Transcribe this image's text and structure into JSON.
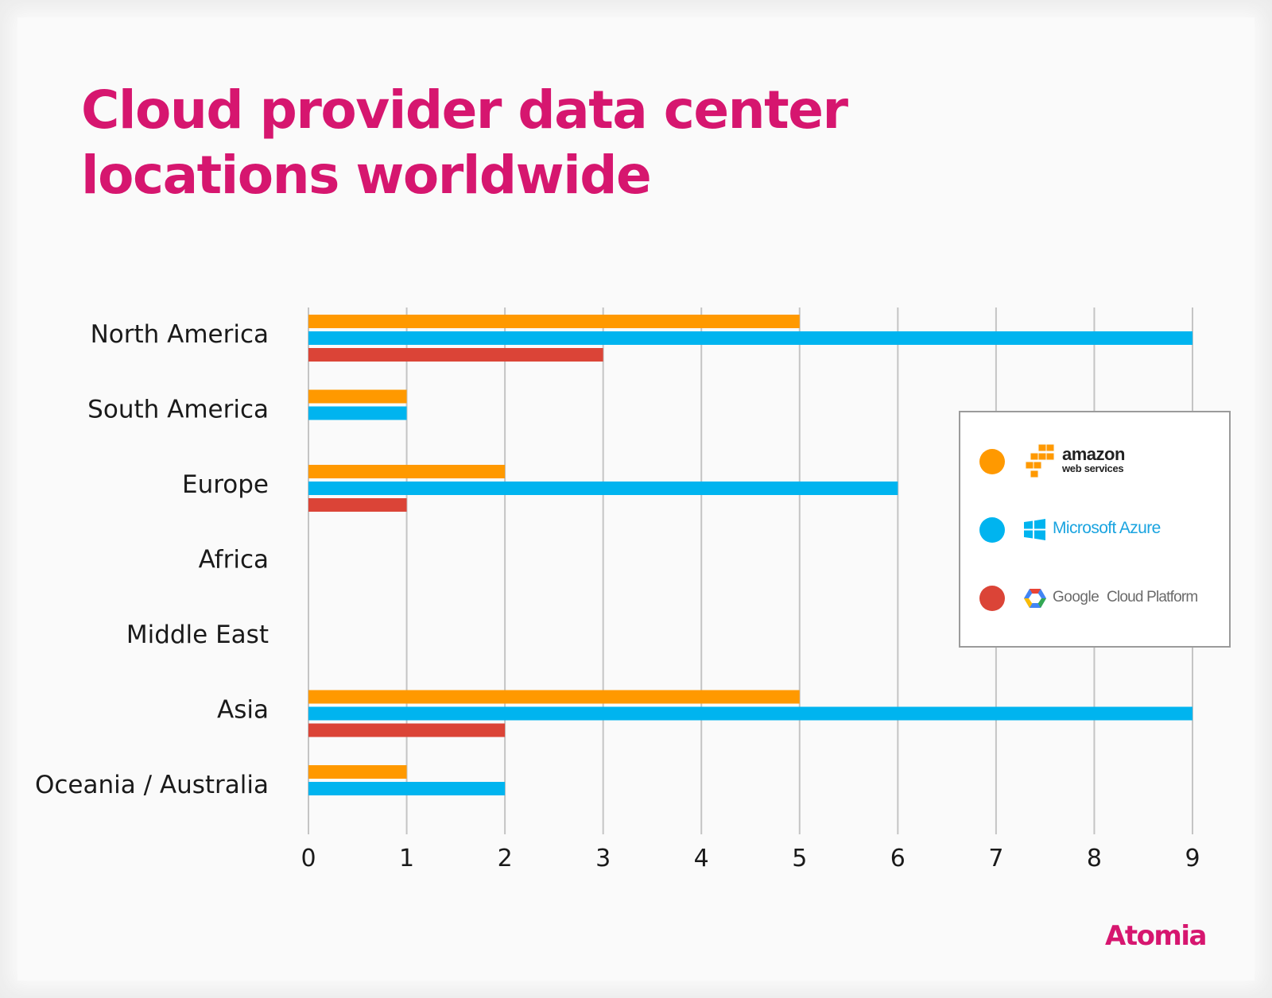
{
  "title_lines": [
    "Cloud provider data center",
    "locations worldwide"
  ],
  "brand": "Atomia",
  "colors": {
    "title": "#d6166f",
    "aws": "#ff9900",
    "azure": "#00b4ef",
    "gcp": "#db4437",
    "grid": "#c4c4c4"
  },
  "legend": {
    "placement": "right",
    "aws": {
      "word": "amazon",
      "sub": "web services",
      "icon": "aws-cubes-icon"
    },
    "azure": {
      "text": "Microsoft Azure",
      "icon": "windows-logo-icon"
    },
    "gcp": {
      "google": "Google",
      "rest": "Cloud Platform",
      "icon": "gcp-hexagon-icon"
    }
  },
  "chart_data": {
    "type": "bar",
    "orientation": "horizontal",
    "title": "Cloud provider data center locations worldwide",
    "categories": [
      "North America",
      "South America",
      "Europe",
      "Africa",
      "Middle East",
      "Asia",
      "Oceania / Australia"
    ],
    "series": [
      {
        "key": "aws",
        "values": [
          5,
          1,
          2,
          0,
          0,
          5,
          1
        ]
      },
      {
        "key": "azure",
        "values": [
          9,
          1,
          6,
          0,
          0,
          9,
          2
        ]
      },
      {
        "key": "gcp",
        "values": [
          3,
          0,
          1,
          0,
          0,
          2,
          0
        ]
      }
    ],
    "x_ticks": [
      0,
      1,
      2,
      3,
      4,
      5,
      6,
      7,
      8,
      9
    ],
    "xlim": [
      0,
      9
    ],
    "grid": true,
    "legend_position": "right"
  }
}
